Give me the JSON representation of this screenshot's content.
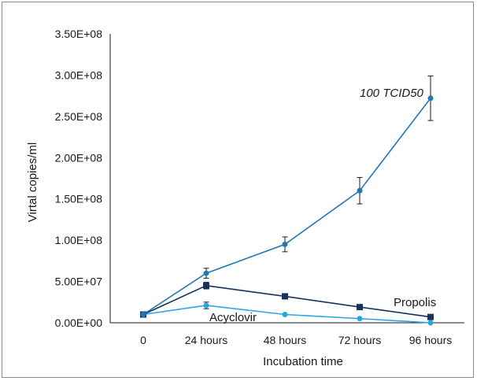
{
  "chart_data": {
    "type": "line",
    "title": "",
    "xlabel": "Incubation time",
    "ylabel": "Virtal copies/ml",
    "categories": [
      "0",
      "24 hours",
      "48 hours",
      "72 hours",
      "96 hours"
    ],
    "y_ticks": [
      "0.00E+00",
      "5.00E+07",
      "1.00E+08",
      "1.50E+08",
      "2.00E+08",
      "2.50E+08",
      "3.00E+08",
      "3.50E+08"
    ],
    "ylim": [
      0,
      350000000
    ],
    "grid": false,
    "legend": "none (series labeled inline)",
    "series": [
      {
        "name": "100 TCID50",
        "color": "#2178b4",
        "marker": "circle",
        "values": [
          10000000,
          60000000,
          95000000,
          160000000,
          272000000
        ],
        "error": [
          0,
          6000000,
          9000000,
          16000000,
          27000000
        ]
      },
      {
        "name": "Propolis",
        "color": "#16325c",
        "marker": "square",
        "values": [
          10000000,
          45000000,
          32000000,
          19000000,
          7000000
        ],
        "error": [
          0,
          4000000,
          3000000,
          0,
          0
        ]
      },
      {
        "name": "Acyclovir",
        "color": "#2aa7e0",
        "marker": "circle",
        "values": [
          10000000,
          21000000,
          10000000,
          5000000,
          0
        ],
        "error": [
          0,
          4000000,
          0,
          0,
          0
        ]
      }
    ]
  }
}
